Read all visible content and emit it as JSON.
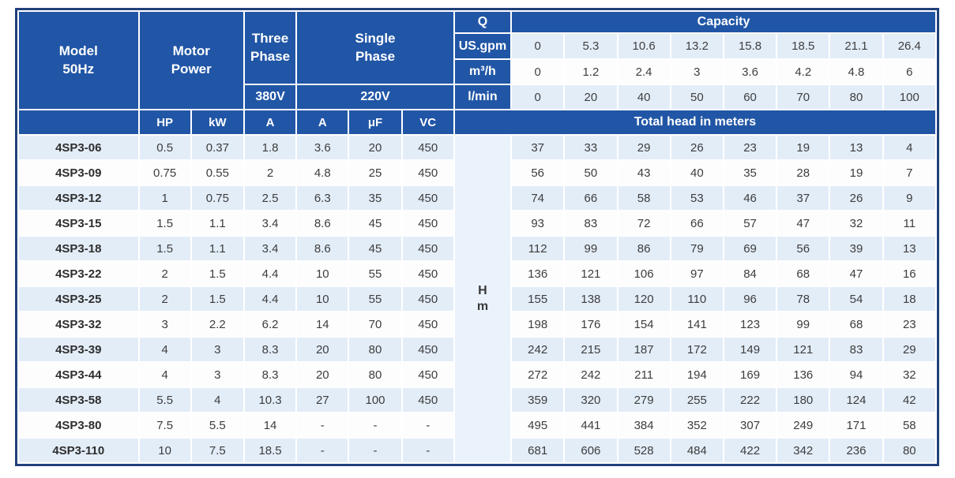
{
  "header": {
    "model_line1": "Model",
    "model_line2": "50Hz",
    "motor_line1": "Motor",
    "motor_line2": "Power",
    "three_line1": "Three",
    "three_line2": "Phase",
    "single_line1": "Single",
    "single_line2": "Phase",
    "volt_380": "380V",
    "volt_220": "220V",
    "q_label": "Q",
    "capacity_label": "Capacity",
    "sub_headers": [
      "HP",
      "kW",
      "A",
      "A",
      "μF",
      "VC"
    ],
    "total_head_label": "Total head in meters",
    "hm_line1": "H",
    "hm_line2": "m"
  },
  "flow_rows": [
    {
      "label": "US.gpm",
      "values": [
        "0",
        "5.3",
        "10.6",
        "13.2",
        "15.8",
        "18.5",
        "21.1",
        "26.4"
      ]
    },
    {
      "label": "m³/h",
      "values": [
        "0",
        "1.2",
        "2.4",
        "3",
        "3.6",
        "4.2",
        "4.8",
        "6"
      ]
    },
    {
      "label": "l/min",
      "values": [
        "0",
        "20",
        "40",
        "50",
        "60",
        "70",
        "80",
        "100"
      ]
    }
  ],
  "rows": [
    {
      "model": "4SP3-06",
      "hp": "0.5",
      "kw": "0.37",
      "a380": "1.8",
      "a220": "3.6",
      "uf": "20",
      "vc": "450",
      "head": [
        "37",
        "33",
        "29",
        "26",
        "23",
        "19",
        "13",
        "4"
      ]
    },
    {
      "model": "4SP3-09",
      "hp": "0.75",
      "kw": "0.55",
      "a380": "2",
      "a220": "4.8",
      "uf": "25",
      "vc": "450",
      "head": [
        "56",
        "50",
        "43",
        "40",
        "35",
        "28",
        "19",
        "7"
      ]
    },
    {
      "model": "4SP3-12",
      "hp": "1",
      "kw": "0.75",
      "a380": "2.5",
      "a220": "6.3",
      "uf": "35",
      "vc": "450",
      "head": [
        "74",
        "66",
        "58",
        "53",
        "46",
        "37",
        "26",
        "9"
      ]
    },
    {
      "model": "4SP3-15",
      "hp": "1.5",
      "kw": "1.1",
      "a380": "3.4",
      "a220": "8.6",
      "uf": "45",
      "vc": "450",
      "head": [
        "93",
        "83",
        "72",
        "66",
        "57",
        "47",
        "32",
        "11"
      ]
    },
    {
      "model": "4SP3-18",
      "hp": "1.5",
      "kw": "1.1",
      "a380": "3.4",
      "a220": "8.6",
      "uf": "45",
      "vc": "450",
      "head": [
        "112",
        "99",
        "86",
        "79",
        "69",
        "56",
        "39",
        "13"
      ]
    },
    {
      "model": "4SP3-22",
      "hp": "2",
      "kw": "1.5",
      "a380": "4.4",
      "a220": "10",
      "uf": "55",
      "vc": "450",
      "head": [
        "136",
        "121",
        "106",
        "97",
        "84",
        "68",
        "47",
        "16"
      ]
    },
    {
      "model": "4SP3-25",
      "hp": "2",
      "kw": "1.5",
      "a380": "4.4",
      "a220": "10",
      "uf": "55",
      "vc": "450",
      "head": [
        "155",
        "138",
        "120",
        "110",
        "96",
        "78",
        "54",
        "18"
      ]
    },
    {
      "model": "4SP3-32",
      "hp": "3",
      "kw": "2.2",
      "a380": "6.2",
      "a220": "14",
      "uf": "70",
      "vc": "450",
      "head": [
        "198",
        "176",
        "154",
        "141",
        "123",
        "99",
        "68",
        "23"
      ]
    },
    {
      "model": "4SP3-39",
      "hp": "4",
      "kw": "3",
      "a380": "8.3",
      "a220": "20",
      "uf": "80",
      "vc": "450",
      "head": [
        "242",
        "215",
        "187",
        "172",
        "149",
        "121",
        "83",
        "29"
      ]
    },
    {
      "model": "4SP3-44",
      "hp": "4",
      "kw": "3",
      "a380": "8.3",
      "a220": "20",
      "uf": "80",
      "vc": "450",
      "head": [
        "272",
        "242",
        "211",
        "194",
        "169",
        "136",
        "94",
        "32"
      ]
    },
    {
      "model": "4SP3-58",
      "hp": "5.5",
      "kw": "4",
      "a380": "10.3",
      "a220": "27",
      "uf": "100",
      "vc": "450",
      "head": [
        "359",
        "320",
        "279",
        "255",
        "222",
        "180",
        "124",
        "42"
      ]
    },
    {
      "model": "4SP3-80",
      "hp": "7.5",
      "kw": "5.5",
      "a380": "14",
      "a220": "-",
      "uf": "-",
      "vc": "-",
      "head": [
        "495",
        "441",
        "384",
        "352",
        "307",
        "249",
        "171",
        "58"
      ]
    },
    {
      "model": "4SP3-110",
      "hp": "10",
      "kw": "7.5",
      "a380": "18.5",
      "a220": "-",
      "uf": "-",
      "vc": "-",
      "head": [
        "681",
        "606",
        "528",
        "484",
        "422",
        "342",
        "236",
        "80"
      ]
    }
  ],
  "colors": {
    "header_blue": "#2156a6",
    "border_navy": "#20417b",
    "stripe_light": "#e3edf8",
    "row_white": "#fdfdfd",
    "hm_background": "#eaf2fb",
    "header_text": "#ffffff",
    "value_text": "#3d3d3d"
  }
}
